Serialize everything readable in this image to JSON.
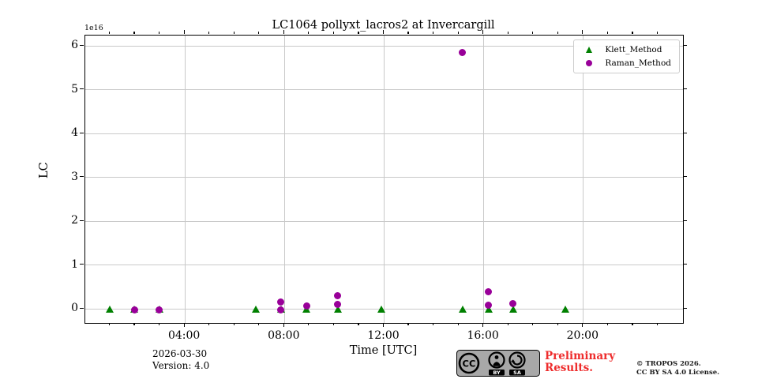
{
  "title": "LC1064 pollyxt_lacros2 at Invercargill",
  "footer": {
    "date": "2026-03-30",
    "version": "Version: 4.0",
    "preliminary_line1": "Preliminary",
    "preliminary_line2": "Results.",
    "preliminary_color": "#ee2c2c",
    "copyright_line1": "© TROPOS 2026.",
    "copyright_line2": "CC BY SA 4.0 License.",
    "cc_badge": {
      "cc_label": "CC",
      "by_label": "BY",
      "sa_label": "SA",
      "person-icon": "cc-attribution-person",
      "share-alike-icon": "cc-sharealike-arrow",
      "badge_color": "#a8a8a8"
    }
  },
  "chart_data": {
    "type": "scatter",
    "title": "LC1064 pollyxt_lacros2 at Invercargill",
    "xlabel": "Time [UTC]",
    "ylabel": "LC",
    "y_offset_label": "1e16",
    "y_scale_factor": 1e+16,
    "grid": true,
    "legend_position": "upper right",
    "xlim_hours": [
      0,
      24
    ],
    "ylim": [
      -0.32,
      6.24
    ],
    "x_major_ticks": [
      {
        "hour": 4,
        "label": "04:00"
      },
      {
        "hour": 8,
        "label": "08:00"
      },
      {
        "hour": 12,
        "label": "12:00"
      },
      {
        "hour": 16,
        "label": "16:00"
      },
      {
        "hour": 20,
        "label": "20:00"
      }
    ],
    "x_minor_tick_every_hours": 1,
    "y_ticks": [
      0,
      1,
      2,
      3,
      4,
      5,
      6
    ],
    "series": [
      {
        "name": "Klett_Method",
        "marker": "triangle",
        "color": "#008000",
        "points": [
          {
            "time": "01:00",
            "hour": 0.97,
            "value": 0.0
          },
          {
            "time": "02:00",
            "hour": 1.97,
            "value": 0.0
          },
          {
            "time": "03:00",
            "hour": 2.97,
            "value": 0.0
          },
          {
            "time": "06:50",
            "hour": 6.85,
            "value": 0.0
          },
          {
            "time": "07:50",
            "hour": 7.86,
            "value": 0.0
          },
          {
            "time": "08:55",
            "hour": 8.88,
            "value": 0.0
          },
          {
            "time": "10:10",
            "hour": 10.14,
            "value": 0.0
          },
          {
            "time": "11:55",
            "hour": 11.88,
            "value": 0.0
          },
          {
            "time": "15:10",
            "hour": 15.14,
            "value": 0.0
          },
          {
            "time": "16:10",
            "hour": 16.19,
            "value": 0.0
          },
          {
            "time": "17:10",
            "hour": 17.17,
            "value": 0.0
          },
          {
            "time": "19:15",
            "hour": 19.29,
            "value": 0.0
          }
        ]
      },
      {
        "name": "Raman_Method",
        "marker": "circle",
        "color": "#990099",
        "points": [
          {
            "time": "02:00",
            "hour": 1.97,
            "value": -0.03
          },
          {
            "time": "03:00",
            "hour": 2.97,
            "value": -0.02
          },
          {
            "time": "07:50",
            "hour": 7.86,
            "value": 0.16
          },
          {
            "time": "07:50",
            "hour": 7.86,
            "value": -0.02
          },
          {
            "time": "08:55",
            "hour": 8.88,
            "value": 0.06
          },
          {
            "time": "10:10",
            "hour": 10.14,
            "value": 0.31
          },
          {
            "time": "10:10",
            "hour": 10.14,
            "value": 0.1
          },
          {
            "time": "15:10",
            "hour": 15.14,
            "value": 5.85
          },
          {
            "time": "16:10",
            "hour": 16.19,
            "value": 0.4
          },
          {
            "time": "16:10",
            "hour": 16.19,
            "value": 0.08
          },
          {
            "time": "17:10",
            "hour": 17.17,
            "value": 0.12
          }
        ]
      }
    ]
  }
}
